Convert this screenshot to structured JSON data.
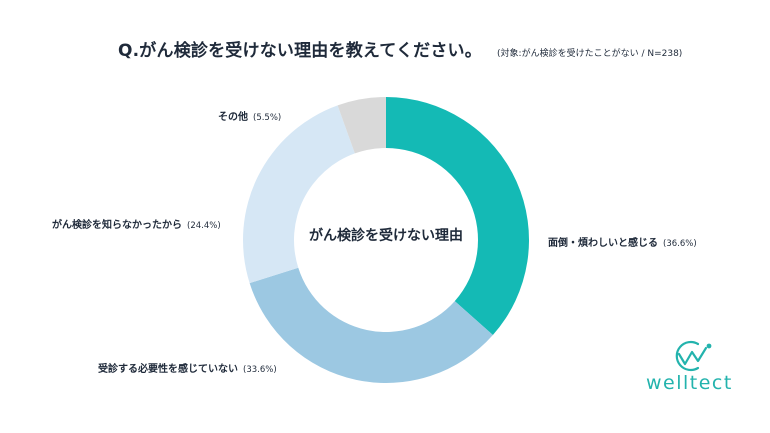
{
  "header": {
    "question": "Q.がん検診を受けない理由を教えてください。",
    "note": "(対象:がん検診を受けたことがない / N=238)"
  },
  "chart_data": {
    "type": "pie",
    "variant": "donut",
    "title": "Q.がん検診を受けない理由を教えてください。",
    "subtitle": "(対象:がん検診を受けたことがない / N=238)",
    "center_label": "がん検診を受けない理由",
    "unit": "%",
    "slices": [
      {
        "label": "面倒・煩わしいと感じる",
        "value": 36.6,
        "display": "(36.6%)",
        "color": "#14bab5"
      },
      {
        "label": "受診する必要性を感じていない",
        "value": 33.6,
        "display": "(33.6%)",
        "color": "#9cc8e2"
      },
      {
        "label": "がん検診を知らなかったから",
        "value": 24.4,
        "display": "(24.4%)",
        "color": "#d6e7f5"
      },
      {
        "label": "その他",
        "value": 5.5,
        "display": "(5.5%)",
        "color": "#d9d9d9"
      }
    ]
  },
  "logo": {
    "text": "welltect",
    "color": "#23b3ad"
  }
}
